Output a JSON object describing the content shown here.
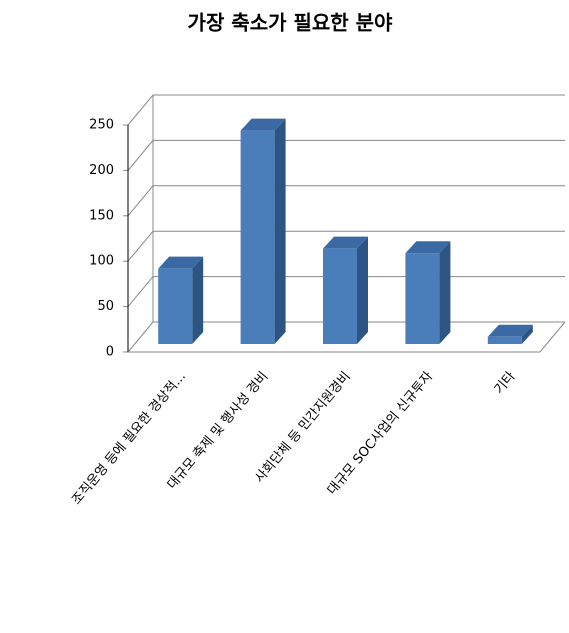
{
  "chart_data": {
    "type": "bar",
    "title": "가장 축소가 필요한 분야",
    "categories": [
      "조직운영 등에 필요한 경상적...",
      "대규모 축제 및 행사성 경비",
      "사회단체 등 민간지원경비",
      "대규모 SOC사업의 신규투자",
      "기타"
    ],
    "values": [
      83,
      235,
      105,
      100,
      8
    ],
    "color": "#4a7ebb",
    "ylim": [
      0,
      250
    ],
    "yticks": [
      0,
      50,
      100,
      150,
      200,
      250
    ],
    "grid": true
  }
}
